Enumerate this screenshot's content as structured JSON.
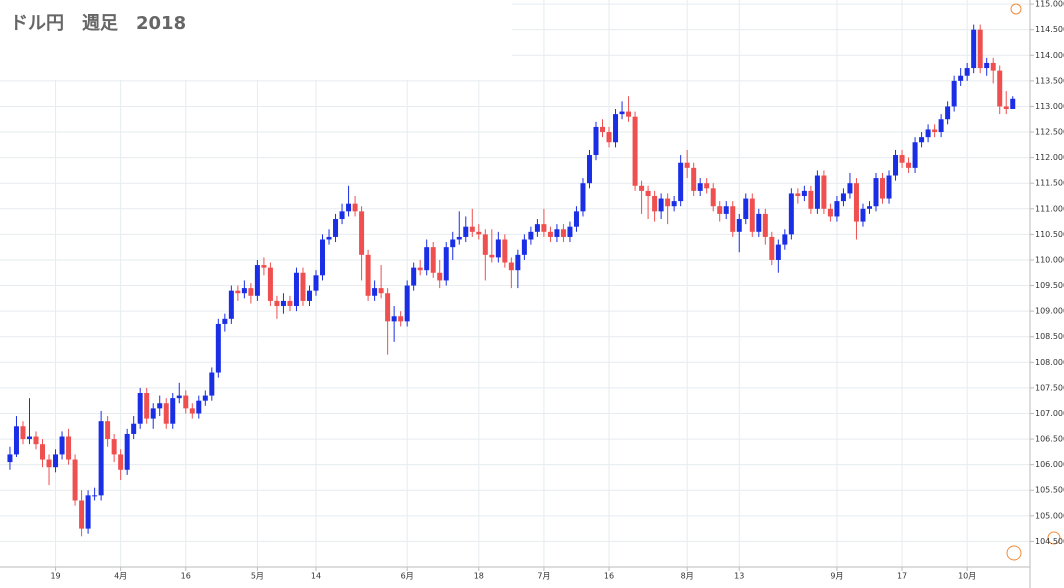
{
  "chart_data": {
    "type": "candlestick",
    "title": "ドル円　週足　2018",
    "categories": [
      null,
      null,
      null,
      null,
      null,
      null,
      null,
      "19",
      null,
      null,
      null,
      null,
      null,
      null,
      null,
      null,
      null,
      "4月",
      null,
      null,
      null,
      null,
      null,
      null,
      null,
      null,
      null,
      "16",
      null,
      null,
      null,
      null,
      null,
      null,
      null,
      null,
      null,
      null,
      "5月",
      null,
      null,
      null,
      null,
      null,
      null,
      null,
      null,
      "14",
      null,
      null,
      null,
      null,
      null,
      null,
      null,
      null,
      null,
      null,
      null,
      null,
      null,
      "6月",
      null,
      null,
      null,
      null,
      null,
      null,
      null,
      null,
      null,
      null,
      "18",
      null,
      null,
      null,
      null,
      null,
      null,
      null,
      null,
      null,
      "7月",
      null,
      null,
      null,
      null,
      null,
      null,
      null,
      null,
      null,
      "16",
      null,
      null,
      null,
      null,
      null,
      null,
      null,
      null,
      null,
      null,
      null,
      "8月",
      null,
      null,
      null,
      null,
      null,
      null,
      null,
      "13",
      null,
      null,
      null,
      null,
      null,
      null,
      null,
      null,
      null,
      null,
      null,
      null,
      null,
      null,
      "9月",
      null,
      null,
      null,
      null,
      null,
      null,
      null,
      null,
      null,
      "17",
      null,
      null,
      null,
      null,
      null,
      null,
      null,
      null,
      null,
      "10月",
      null,
      null,
      null,
      null,
      null,
      null,
      null
    ],
    "open": [
      106.05,
      106.2,
      106.75,
      106.5,
      106.55,
      106.4,
      106.1,
      105.95,
      106.2,
      106.55,
      106.1,
      105.3,
      104.75,
      105.4,
      105.4,
      106.85,
      106.5,
      106.2,
      105.9,
      106.6,
      106.8,
      107.4,
      106.9,
      107.1,
      107.2,
      106.8,
      107.3,
      107.35,
      107.1,
      107.0,
      107.25,
      107.35,
      107.8,
      108.75,
      108.85,
      109.4,
      109.35,
      109.45,
      109.3,
      109.9,
      109.85,
      109.2,
      109.1,
      109.2,
      109.1,
      109.75,
      109.2,
      109.4,
      109.7,
      110.4,
      110.45,
      110.8,
      110.95,
      111.1,
      110.95,
      110.1,
      109.3,
      109.45,
      109.35,
      108.8,
      108.9,
      108.8,
      109.5,
      109.85,
      109.8,
      110.25,
      109.75,
      109.6,
      110.25,
      110.4,
      110.45,
      110.65,
      110.55,
      110.5,
      110.1,
      110.05,
      110.4,
      109.95,
      109.8,
      110.1,
      110.4,
      110.55,
      110.7,
      110.55,
      110.45,
      110.6,
      110.45,
      110.65,
      110.95,
      111.5,
      112.05,
      112.6,
      112.5,
      112.3,
      112.85,
      112.9,
      112.8,
      111.45,
      111.35,
      111.25,
      110.95,
      111.2,
      111.05,
      111.15,
      111.9,
      111.8,
      111.35,
      111.5,
      111.4,
      111.05,
      110.9,
      111.05,
      110.55,
      110.8,
      111.2,
      110.55,
      110.9,
      110.45,
      110.0,
      110.3,
      110.5,
      111.3,
      111.25,
      111.35,
      111.0,
      111.65,
      111.0,
      110.85,
      111.15,
      111.3,
      111.5,
      110.75,
      111.0,
      111.05,
      111.6,
      111.2,
      111.65,
      112.05,
      111.9,
      111.8,
      112.3,
      112.4,
      112.55,
      112.5,
      112.75,
      113.0,
      113.5,
      113.6,
      113.75,
      114.5,
      113.75,
      113.85,
      113.7,
      113.0,
      112.95
    ],
    "high": [
      106.35,
      106.95,
      106.85,
      107.3,
      106.65,
      106.5,
      106.2,
      106.3,
      106.65,
      106.7,
      106.2,
      105.5,
      105.5,
      105.55,
      107.05,
      106.95,
      106.6,
      106.3,
      106.7,
      106.95,
      107.5,
      107.5,
      107.2,
      107.35,
      107.3,
      107.4,
      107.6,
      107.45,
      107.2,
      107.35,
      107.45,
      107.9,
      108.85,
      108.95,
      109.5,
      109.5,
      109.6,
      109.55,
      110.0,
      110.05,
      109.95,
      109.3,
      109.35,
      109.3,
      109.85,
      109.85,
      109.5,
      109.8,
      110.5,
      110.6,
      110.9,
      111.1,
      111.45,
      111.25,
      111.05,
      110.2,
      109.6,
      109.9,
      109.45,
      109.1,
      109.0,
      109.6,
      109.95,
      110.0,
      110.4,
      110.35,
      110.0,
      110.35,
      110.55,
      110.95,
      110.85,
      111.0,
      110.7,
      110.6,
      110.6,
      110.55,
      110.5,
      110.05,
      110.2,
      110.5,
      110.65,
      110.8,
      111.0,
      110.65,
      110.7,
      110.7,
      110.75,
      111.05,
      111.6,
      112.15,
      112.7,
      112.75,
      112.6,
      112.95,
      113.1,
      113.2,
      112.9,
      111.55,
      111.45,
      111.35,
      111.3,
      111.3,
      111.25,
      112.05,
      112.15,
      111.9,
      111.6,
      111.6,
      111.5,
      111.15,
      111.15,
      111.15,
      110.9,
      111.3,
      111.3,
      111.0,
      111.0,
      110.55,
      110.4,
      110.6,
      111.4,
      111.4,
      111.45,
      111.45,
      111.75,
      111.75,
      111.1,
      111.25,
      111.4,
      111.7,
      111.6,
      111.1,
      111.15,
      111.7,
      111.7,
      111.75,
      112.15,
      112.15,
      112.0,
      112.4,
      112.5,
      112.65,
      112.65,
      112.85,
      113.1,
      113.6,
      113.75,
      113.85,
      114.6,
      114.6,
      113.95,
      113.95,
      113.8,
      113.3,
      113.2
    ],
    "low": [
      105.9,
      106.15,
      106.4,
      106.4,
      106.3,
      105.95,
      105.6,
      105.85,
      106.1,
      106.0,
      105.2,
      104.6,
      104.65,
      105.3,
      105.3,
      106.35,
      106.05,
      105.7,
      105.8,
      106.5,
      106.7,
      106.8,
      106.7,
      106.95,
      106.7,
      106.7,
      107.2,
      107.0,
      106.9,
      106.9,
      107.15,
      107.25,
      107.7,
      108.6,
      108.75,
      109.2,
      109.25,
      109.15,
      109.2,
      109.7,
      109.1,
      108.85,
      108.95,
      109.0,
      109.0,
      109.1,
      109.1,
      109.3,
      109.6,
      110.3,
      110.35,
      110.7,
      110.85,
      110.85,
      109.6,
      109.2,
      109.2,
      109.25,
      108.15,
      108.4,
      108.7,
      108.7,
      109.4,
      109.7,
      109.7,
      109.65,
      109.45,
      109.5,
      110.0,
      110.3,
      110.35,
      110.45,
      110.4,
      109.6,
      109.95,
      109.95,
      109.85,
      109.45,
      109.45,
      110.0,
      110.3,
      110.45,
      110.45,
      110.35,
      110.35,
      110.35,
      110.35,
      110.55,
      110.85,
      111.4,
      111.95,
      112.4,
      112.2,
      112.2,
      112.75,
      112.7,
      111.35,
      110.9,
      110.8,
      110.75,
      110.8,
      110.7,
      110.95,
      111.05,
      111.6,
      111.25,
      111.25,
      111.3,
      110.95,
      110.75,
      110.8,
      110.45,
      110.15,
      110.7,
      110.45,
      110.45,
      110.3,
      109.9,
      109.75,
      110.2,
      110.4,
      111.1,
      111.15,
      110.9,
      110.9,
      110.9,
      110.75,
      110.75,
      111.05,
      111.2,
      110.4,
      110.65,
      110.9,
      110.95,
      111.1,
      111.1,
      111.55,
      111.8,
      111.7,
      111.7,
      112.2,
      112.3,
      112.4,
      112.4,
      112.65,
      112.9,
      113.4,
      113.5,
      113.65,
      113.65,
      113.6,
      113.45,
      112.85,
      112.85,
      112.95
    ],
    "close": [
      106.2,
      106.75,
      106.5,
      106.55,
      106.4,
      106.1,
      105.95,
      106.2,
      106.55,
      106.1,
      105.3,
      104.75,
      105.4,
      105.4,
      106.85,
      106.5,
      106.2,
      105.9,
      106.6,
      106.8,
      107.4,
      106.9,
      107.1,
      107.2,
      106.8,
      107.3,
      107.35,
      107.1,
      107.0,
      107.25,
      107.35,
      107.8,
      108.75,
      108.85,
      109.4,
      109.35,
      109.45,
      109.3,
      109.9,
      109.85,
      109.2,
      109.1,
      109.2,
      109.1,
      109.75,
      109.2,
      109.4,
      109.7,
      110.4,
      110.45,
      110.8,
      110.95,
      111.1,
      110.95,
      110.1,
      109.3,
      109.45,
      109.35,
      108.8,
      108.9,
      108.8,
      109.5,
      109.85,
      109.8,
      110.25,
      109.75,
      109.6,
      110.25,
      110.4,
      110.45,
      110.65,
      110.55,
      110.5,
      110.1,
      110.05,
      110.4,
      109.95,
      109.8,
      110.1,
      110.4,
      110.55,
      110.7,
      110.55,
      110.45,
      110.6,
      110.45,
      110.65,
      110.95,
      111.5,
      112.05,
      112.6,
      112.5,
      112.3,
      112.85,
      112.9,
      112.8,
      111.45,
      111.35,
      111.25,
      110.95,
      111.2,
      111.05,
      111.15,
      111.9,
      111.8,
      111.35,
      111.5,
      111.4,
      111.05,
      110.9,
      111.05,
      110.55,
      110.8,
      111.2,
      110.55,
      110.9,
      110.45,
      110.0,
      110.3,
      110.5,
      111.3,
      111.25,
      111.35,
      111.0,
      111.65,
      111.0,
      110.85,
      111.15,
      111.3,
      111.5,
      110.75,
      111.0,
      111.05,
      111.6,
      111.2,
      111.65,
      112.05,
      111.9,
      111.8,
      112.3,
      112.4,
      112.55,
      112.5,
      112.75,
      113.0,
      113.5,
      113.6,
      113.75,
      114.5,
      113.75,
      113.85,
      113.7,
      113.0,
      112.95,
      113.15
    ],
    "up_color": "#1a2ee6",
    "down_color": "#ef4f4f",
    "ylim": [
      104.0,
      115.08
    ],
    "yticks": [
      {
        "value": 104.5,
        "label": "104.500"
      },
      {
        "value": 105,
        "label": "105.000"
      },
      {
        "value": 105.5,
        "label": "105.500"
      },
      {
        "value": 106,
        "label": "106.000"
      },
      {
        "value": 106.5,
        "label": "106.500"
      },
      {
        "value": 107,
        "label": "107.000"
      },
      {
        "value": 107.5,
        "label": "107.500"
      },
      {
        "value": 108,
        "label": "108.000"
      },
      {
        "value": 108.5,
        "label": "108.500"
      },
      {
        "value": 109,
        "label": "109.000"
      },
      {
        "value": 109.5,
        "label": "109.500"
      },
      {
        "value": 110,
        "label": "110.000"
      },
      {
        "value": 110.5,
        "label": "110.500"
      },
      {
        "value": 111,
        "label": "111.000"
      },
      {
        "value": 111.5,
        "label": "111.500"
      },
      {
        "value": 112,
        "label": "112.000"
      },
      {
        "value": 112.5,
        "label": "112.500"
      },
      {
        "value": 113,
        "label": "113.000"
      },
      {
        "value": 113.5,
        "label": "113.500"
      },
      {
        "value": 114,
        "label": "114.000"
      },
      {
        "value": 114.5,
        "label": "114.500"
      },
      {
        "value": 115,
        "label": "115.000"
      }
    ],
    "grid": true
  }
}
